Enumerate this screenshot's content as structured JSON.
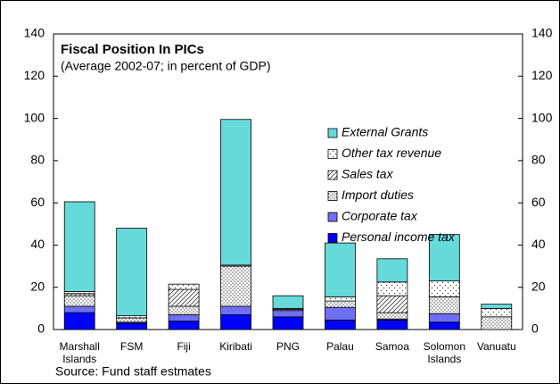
{
  "chart_data": {
    "type": "bar",
    "stacked": true,
    "title": "Fiscal Position In PICs",
    "subtitle": "(Average 2002-07; in percent of GDP)",
    "source": "Source: Fund staff estmates",
    "categories": [
      "Marshall Islands",
      "FSM",
      "Fiji",
      "Kiribati",
      "PNG",
      "Palau",
      "Samoa",
      "Solomon Islands",
      "Vanuatu"
    ],
    "series": [
      {
        "name": "Personal income tax",
        "color": "#0000ff",
        "values": [
          8,
          3,
          4,
          7,
          6,
          4.5,
          4.5,
          3.5,
          0
        ]
      },
      {
        "name": "Corporate tax",
        "color": "#6f6ff5",
        "values": [
          3,
          0.5,
          3,
          4,
          3,
          6,
          0.5,
          4,
          0
        ]
      },
      {
        "name": "Import duties",
        "color": "#ffffff",
        "pattern": "dots",
        "values": [
          5,
          2,
          4,
          19,
          0.5,
          3,
          3,
          8,
          6
        ]
      },
      {
        "name": "Sales tax",
        "color": "#ffffff",
        "pattern": "hatch",
        "values": [
          1,
          0,
          8,
          0,
          0,
          0,
          8,
          0,
          0
        ]
      },
      {
        "name": "Other tax revenue",
        "color": "#ffffff",
        "pattern": "sparse-dots",
        "values": [
          1,
          1,
          2.5,
          0.5,
          0.5,
          2,
          6.5,
          7.5,
          4
        ]
      },
      {
        "name": "External Grants",
        "color": "#66d9d9",
        "values": [
          42.5,
          41.5,
          0,
          69,
          6,
          25.5,
          11,
          22,
          2
        ]
      }
    ],
    "ylim": [
      0,
      140
    ],
    "yticks": [
      0,
      20,
      40,
      60,
      80,
      100,
      120,
      140
    ],
    "y2lim": [
      0,
      140
    ],
    "y2ticks": [
      0,
      20,
      40,
      60,
      80,
      100,
      120,
      140
    ],
    "grid": false,
    "legend": "upper-right"
  }
}
